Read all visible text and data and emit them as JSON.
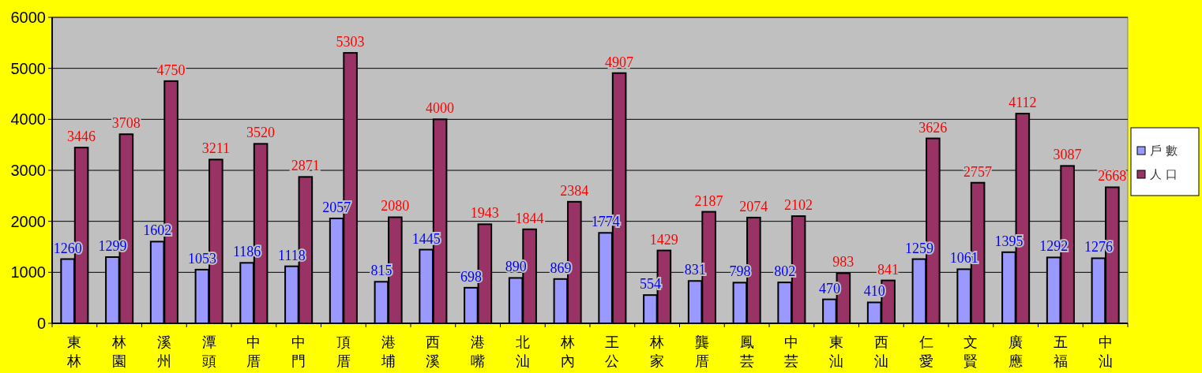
{
  "chart_data": {
    "type": "bar",
    "categories": [
      "東林",
      "林園",
      "溪州",
      "潭頭",
      "中厝",
      "中門",
      "頂厝",
      "港埔",
      "西溪",
      "港嘴",
      "北汕",
      "林內",
      "王公",
      "林家",
      "龔厝",
      "鳳芸",
      "中芸",
      "東汕",
      "西汕",
      "仁愛",
      "文賢",
      "廣應",
      "五福",
      "中汕"
    ],
    "series": [
      {
        "name": "戶 數",
        "color": "#9999ff",
        "values": [
          1260,
          1299,
          1602,
          1053,
          1186,
          1118,
          2057,
          815,
          1445,
          698,
          890,
          869,
          1774,
          554,
          831,
          798,
          802,
          470,
          410,
          1259,
          1061,
          1395,
          1292,
          1276
        ]
      },
      {
        "name": "人 口",
        "color": "#993366",
        "values": [
          3446,
          3708,
          4750,
          3211,
          3520,
          2871,
          5303,
          2080,
          4000,
          1943,
          1844,
          2384,
          4907,
          1429,
          2187,
          2074,
          2102,
          983,
          841,
          3626,
          2757,
          4112,
          3087,
          2668
        ]
      }
    ],
    "ylim": [
      0,
      6000
    ],
    "yticks": [
      0,
      1000,
      2000,
      3000,
      4000,
      5000,
      6000
    ],
    "grid": "y",
    "legend": "right",
    "data_labels": true
  }
}
